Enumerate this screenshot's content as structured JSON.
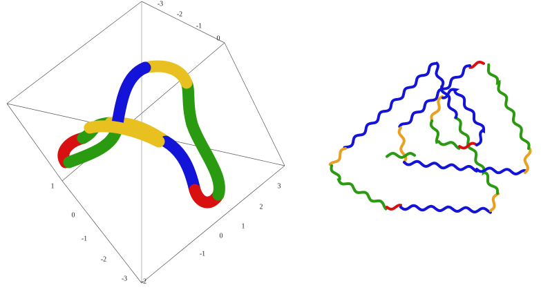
{
  "left_plot": {
    "top_axis_ticks": [
      "-3",
      "-2",
      "-1",
      "0"
    ],
    "right_axis_ticks": [
      "3",
      "2",
      "1",
      "0",
      "-1",
      "-2"
    ],
    "left_axis_ticks": [
      "1",
      "0",
      "-1",
      "-2",
      "-3"
    ]
  }
}
